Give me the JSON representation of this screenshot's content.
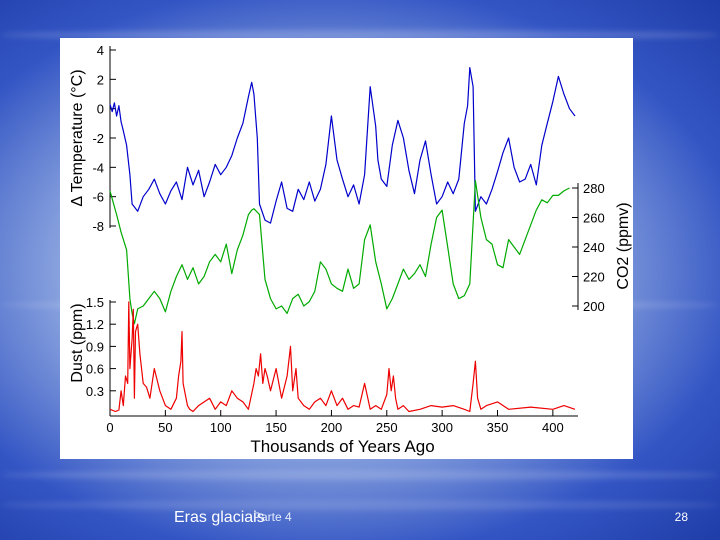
{
  "footer": {
    "title": "Eras glaciais",
    "subtitle": "Parte 4",
    "slide_number": "28"
  },
  "chart_data": {
    "type": "line",
    "xlabel": "Thousands of Years Ago",
    "xlim": [
      0,
      420
    ],
    "xticks": [
      "0",
      "50",
      "100",
      "150",
      "200",
      "250",
      "300",
      "350",
      "400"
    ],
    "temperature": {
      "label": "Δ Temperature (°C)",
      "color": "#0000cc",
      "ylim": [
        -8,
        4
      ],
      "yticks": [
        "4",
        "2",
        "0",
        "-2",
        "-4",
        "-6",
        "-8"
      ],
      "x": [
        0,
        2,
        4,
        6,
        8,
        10,
        12,
        15,
        18,
        20,
        25,
        30,
        35,
        40,
        45,
        50,
        55,
        60,
        65,
        70,
        75,
        80,
        85,
        90,
        95,
        100,
        105,
        110,
        115,
        120,
        125,
        128,
        130,
        133,
        135,
        140,
        145,
        150,
        155,
        160,
        165,
        170,
        175,
        180,
        185,
        190,
        195,
        200,
        205,
        210,
        215,
        220,
        225,
        230,
        235,
        240,
        242,
        245,
        250,
        255,
        260,
        265,
        270,
        275,
        280,
        285,
        290,
        295,
        300,
        305,
        310,
        315,
        320,
        323,
        325,
        328,
        330,
        335,
        340,
        345,
        350,
        355,
        360,
        365,
        370,
        375,
        380,
        385,
        390,
        395,
        400,
        405,
        410,
        415,
        420
      ],
      "y": [
        0.3,
        -0.2,
        0.4,
        -0.5,
        0.2,
        -0.9,
        -1.5,
        -2.5,
        -4.5,
        -6.5,
        -7.0,
        -6.0,
        -5.5,
        -4.8,
        -5.8,
        -6.5,
        -5.6,
        -5.0,
        -6.2,
        -4.0,
        -5.2,
        -4.2,
        -6.0,
        -5.0,
        -3.8,
        -4.5,
        -4.0,
        -3.2,
        -2.0,
        -1.0,
        0.8,
        1.8,
        1.0,
        -2.0,
        -6.5,
        -7.6,
        -7.8,
        -6.3,
        -5.0,
        -6.8,
        -7.0,
        -5.5,
        -6.2,
        -5.0,
        -6.3,
        -5.5,
        -3.8,
        -0.5,
        -3.5,
        -4.8,
        -6.0,
        -5.2,
        -6.5,
        -4.5,
        1.5,
        -1.2,
        -3.5,
        -4.8,
        -5.3,
        -2.5,
        -0.8,
        -2.0,
        -4.2,
        -5.8,
        -3.5,
        -2.2,
        -4.5,
        -6.5,
        -6.0,
        -5.0,
        -5.8,
        -4.8,
        -1.0,
        0.2,
        2.8,
        1.5,
        -7.0,
        -6.0,
        -6.5,
        -5.5,
        -4.3,
        -3.0,
        -2.0,
        -4.0,
        -5.0,
        -4.8,
        -3.8,
        -5.2,
        -2.5,
        -1.0,
        0.5,
        2.2,
        1.0,
        0.0,
        -0.5
      ]
    },
    "co2": {
      "label": "CO2 (ppmv)",
      "color": "#00aa00",
      "ylim": [
        200,
        280
      ],
      "yticks": [
        "280",
        "260",
        "240",
        "220",
        "200"
      ],
      "x": [
        0,
        3,
        6,
        10,
        15,
        18,
        20,
        22,
        25,
        30,
        35,
        40,
        45,
        50,
        55,
        60,
        65,
        70,
        75,
        80,
        85,
        90,
        95,
        100,
        105,
        110,
        115,
        120,
        125,
        128,
        130,
        135,
        140,
        145,
        150,
        155,
        160,
        165,
        170,
        175,
        180,
        185,
        190,
        195,
        200,
        205,
        210,
        215,
        220,
        225,
        230,
        235,
        240,
        245,
        250,
        255,
        260,
        265,
        270,
        275,
        280,
        285,
        290,
        295,
        300,
        305,
        310,
        315,
        320,
        325,
        330,
        335,
        340,
        345,
        350,
        355,
        360,
        365,
        370,
        375,
        380,
        385,
        390,
        395,
        400,
        405,
        410,
        415
      ],
      "y": [
        278,
        270,
        262,
        250,
        238,
        205,
        195,
        188,
        198,
        200,
        205,
        210,
        205,
        196,
        210,
        220,
        228,
        218,
        226,
        215,
        220,
        230,
        235,
        230,
        242,
        222,
        238,
        248,
        262,
        265,
        266,
        262,
        218,
        205,
        198,
        200,
        195,
        205,
        208,
        200,
        203,
        210,
        230,
        225,
        215,
        212,
        210,
        225,
        212,
        215,
        245,
        255,
        230,
        215,
        198,
        205,
        215,
        225,
        218,
        222,
        228,
        220,
        242,
        260,
        265,
        240,
        215,
        205,
        207,
        215,
        285,
        260,
        245,
        242,
        228,
        226,
        245,
        240,
        235,
        245,
        255,
        265,
        272,
        270,
        275,
        275,
        278,
        280
      ]
    },
    "dust": {
      "label": "Dust (ppm)",
      "color": "#ee0000",
      "ylim": [
        0,
        1.5
      ],
      "yticks": [
        "1.5",
        "1.2",
        "0.9",
        "0.6",
        "0.3"
      ],
      "x": [
        0,
        5,
        8,
        10,
        12,
        14,
        16,
        17,
        18,
        19,
        20,
        21,
        22,
        23,
        25,
        27,
        30,
        33,
        36,
        40,
        45,
        50,
        55,
        60,
        62,
        64,
        65,
        66,
        68,
        70,
        72,
        75,
        80,
        90,
        95,
        100,
        105,
        110,
        115,
        120,
        125,
        130,
        132,
        134,
        136,
        138,
        140,
        142,
        145,
        150,
        155,
        160,
        163,
        165,
        168,
        170,
        175,
        180,
        185,
        190,
        195,
        200,
        205,
        210,
        215,
        220,
        225,
        230,
        235,
        240,
        245,
        250,
        252,
        254,
        256,
        258,
        260,
        265,
        270,
        280,
        290,
        300,
        310,
        320,
        325,
        328,
        330,
        332,
        335,
        340,
        350,
        360,
        380,
        400,
        410,
        420
      ],
      "y": [
        0.05,
        0.02,
        0.04,
        0.3,
        0.1,
        0.5,
        0.4,
        1.5,
        0.6,
        0.8,
        1.0,
        1.4,
        0.2,
        1.1,
        1.2,
        0.8,
        0.4,
        0.35,
        0.2,
        0.6,
        0.3,
        0.1,
        0.05,
        0.2,
        0.5,
        0.7,
        1.1,
        0.4,
        0.25,
        0.1,
        0.05,
        0.02,
        0.1,
        0.2,
        0.05,
        0.15,
        0.1,
        0.3,
        0.2,
        0.15,
        0.05,
        0.4,
        0.6,
        0.5,
        0.8,
        0.4,
        0.6,
        0.5,
        0.3,
        0.6,
        0.2,
        0.5,
        0.9,
        0.3,
        0.6,
        0.2,
        0.1,
        0.05,
        0.15,
        0.2,
        0.1,
        0.3,
        0.1,
        0.2,
        0.05,
        0.1,
        0.08,
        0.4,
        0.05,
        0.1,
        0.05,
        0.25,
        0.6,
        0.3,
        0.5,
        0.2,
        0.05,
        0.1,
        0.02,
        0.05,
        0.1,
        0.08,
        0.1,
        0.05,
        0.02,
        0.4,
        0.7,
        0.2,
        0.05,
        0.1,
        0.15,
        0.05,
        0.08,
        0.05,
        0.1,
        0.05
      ]
    }
  }
}
